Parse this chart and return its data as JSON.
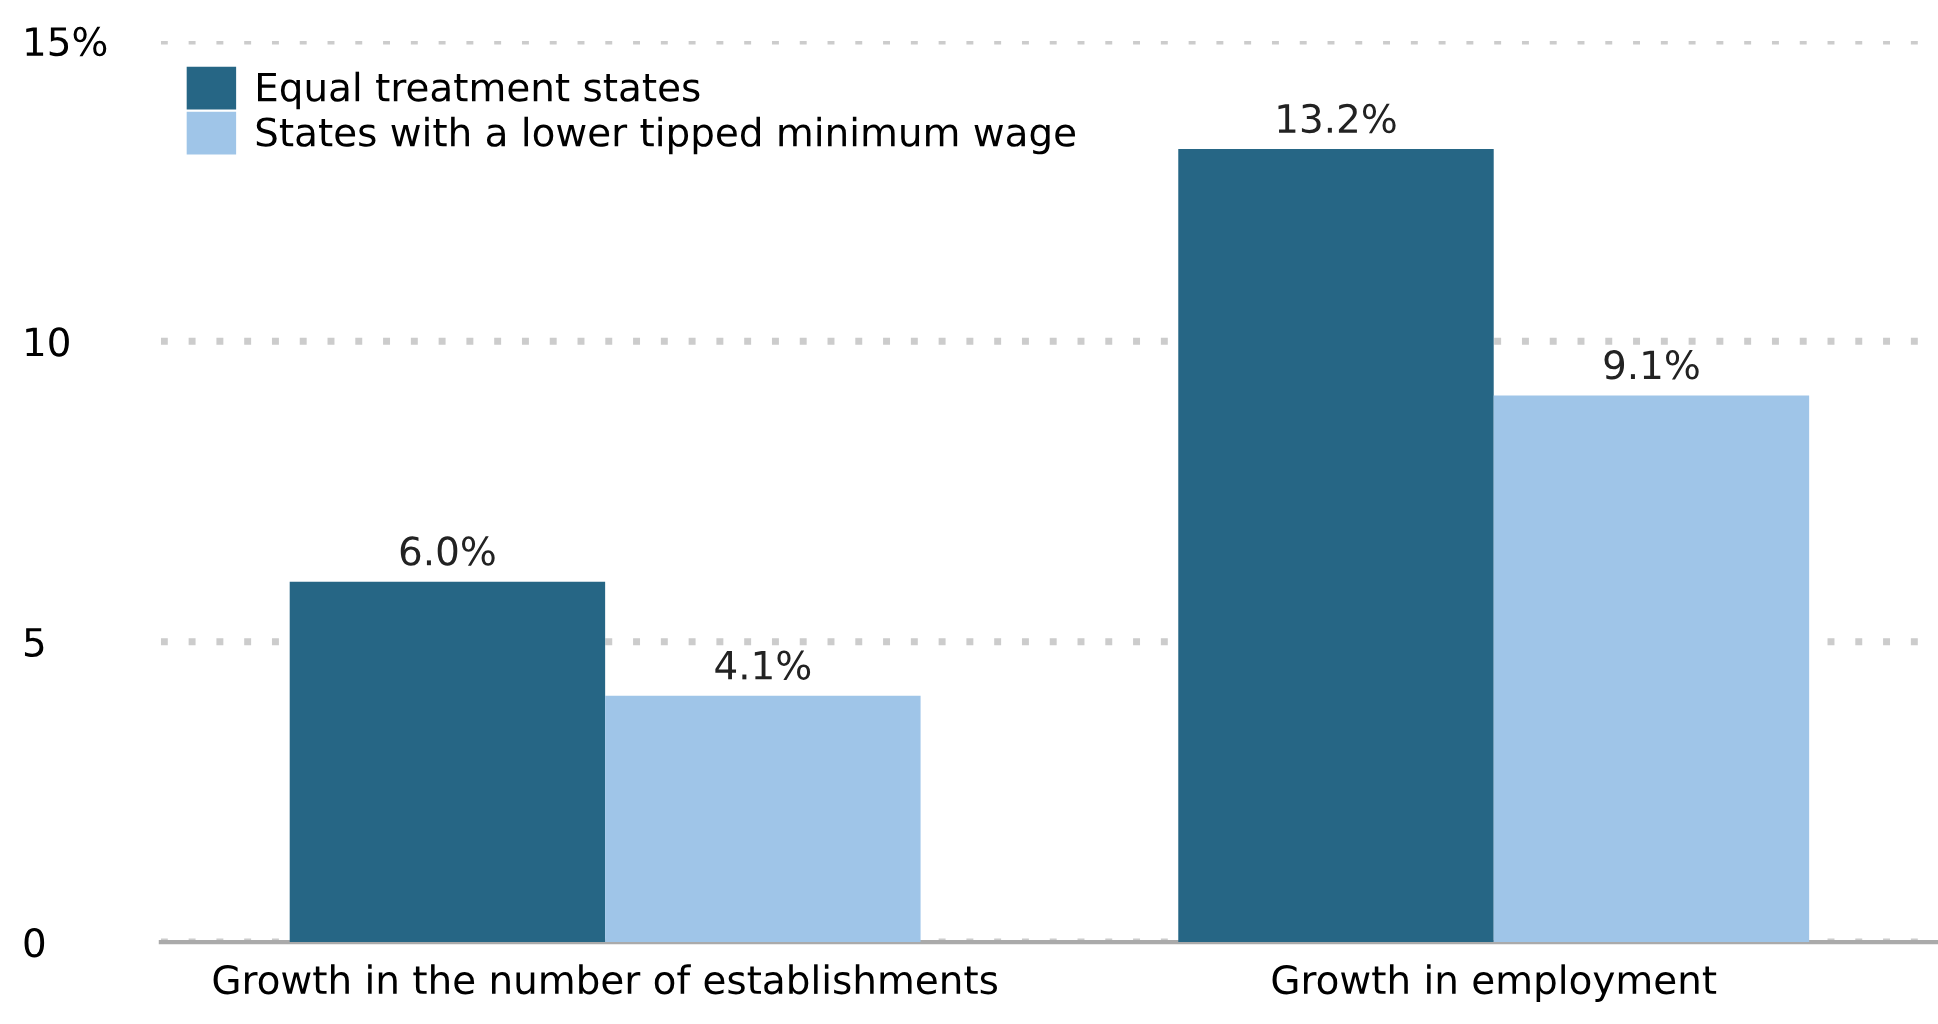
{
  "chart_data": {
    "type": "bar",
    "categories": [
      "Growth in the number of establishments",
      "Growth in employment"
    ],
    "series": [
      {
        "name": "Equal treatment states",
        "color": "#266685",
        "values": [
          6.0,
          13.2
        ],
        "value_labels": [
          "6.0%",
          "13.2%"
        ]
      },
      {
        "name": "States with a lower tipped minimum wage",
        "color": "#9fc5e8",
        "values": [
          4.1,
          9.1
        ],
        "value_labels": [
          "4.1%",
          "9.1%"
        ]
      }
    ],
    "ylim": [
      0,
      15
    ],
    "yticks": [
      0,
      5,
      10,
      {
        "value": 15,
        "label": "15%"
      }
    ],
    "grid": "y",
    "legend": "top left"
  }
}
